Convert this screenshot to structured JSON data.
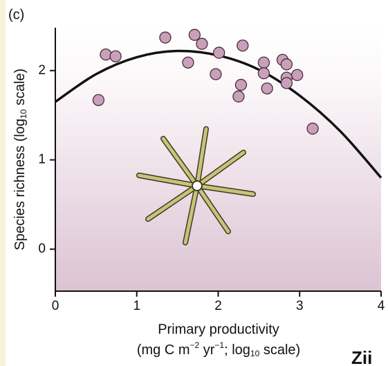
{
  "chart_data": {
    "type": "scatter",
    "title": "(c)",
    "y_label": [
      "Species richness (log",
      "10",
      " scale)"
    ],
    "x_label": [
      "Primary productivity"
    ],
    "x_label_sub": [
      "(mg C m",
      "−2",
      " yr",
      "−1",
      "; log",
      "10",
      " scale)"
    ],
    "watermark": "Zii",
    "x": [
      0.53,
      0.62,
      0.74,
      1.35,
      1.71,
      1.8,
      1.63,
      2.01,
      1.97,
      2.3,
      2.28,
      2.25,
      2.56,
      2.56,
      2.6,
      2.79,
      2.84,
      2.84,
      2.84,
      2.97,
      3.16
    ],
    "values": [
      1.67,
      2.18,
      2.16,
      2.37,
      2.4,
      2.3,
      2.09,
      2.2,
      1.96,
      2.28,
      1.84,
      1.71,
      2.09,
      1.97,
      1.8,
      2.12,
      2.07,
      1.92,
      1.86,
      1.95,
      1.35
    ],
    "color": "#c9a0b9",
    "curve": {
      "x": [
        0,
        0.5,
        1,
        1.5,
        2,
        2.5,
        3,
        3.5,
        4
      ],
      "y": [
        1.65,
        1.96,
        2.15,
        2.22,
        2.17,
        2.01,
        1.72,
        1.32,
        0.8
      ],
      "color": "#111111"
    },
    "xlim": [
      0,
      4
    ],
    "ylim": [
      -0.47,
      2.48
    ],
    "xticks": [
      0,
      1,
      2,
      3,
      4
    ],
    "yticks": [
      0,
      1,
      2
    ]
  }
}
